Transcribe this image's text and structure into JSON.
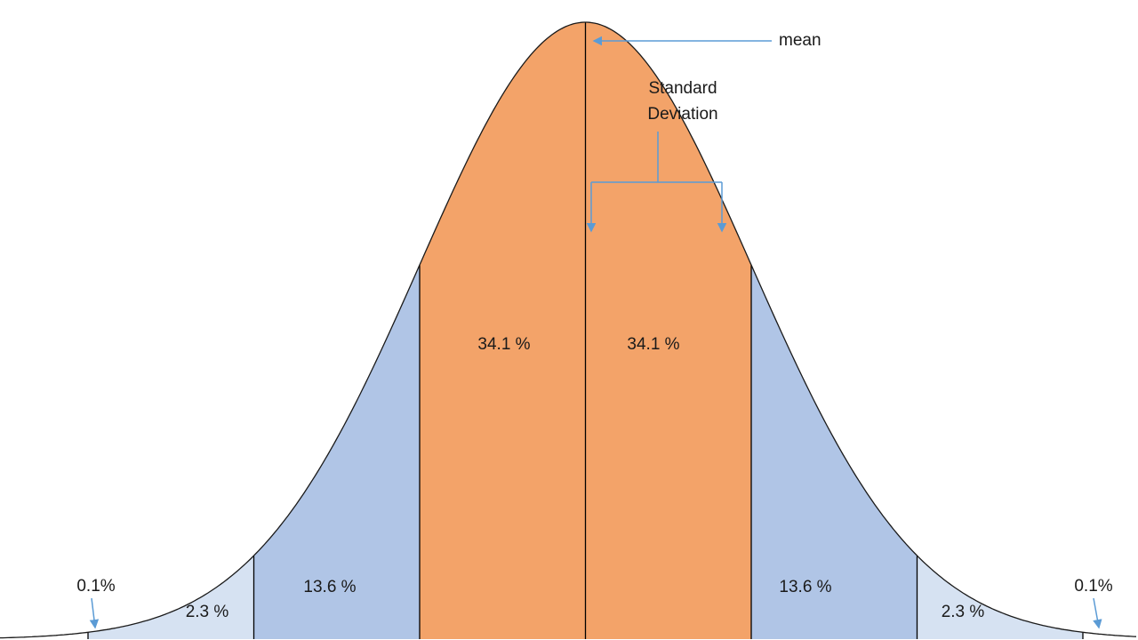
{
  "annotations": {
    "mean": "mean",
    "standard_deviation": "Standard Deviation"
  },
  "colors": {
    "annotation_blue": "#5B9BD5",
    "curve_stroke": "#1a1a1a",
    "boundary_line": "#000000",
    "region_center": "#F3A369",
    "region_1to2sd": "#B0C5E6",
    "region_2to3sd": "#D6E2F2",
    "region_tail": "#FFFFFF"
  },
  "chart_data": {
    "type": "area",
    "distribution": "normal",
    "title": "",
    "xlabel": "",
    "ylabel": "",
    "x_units": "standard deviations from mean",
    "xlim_sd": [
      -3.55,
      3.55
    ],
    "grid": false,
    "legend": false,
    "regions": [
      {
        "range_sd": [
          -3.55,
          -3
        ],
        "percent": 0.1,
        "label": "0.1%",
        "color": "#FFFFFF"
      },
      {
        "range_sd": [
          -3,
          -2
        ],
        "percent": 2.3,
        "label": "2.3 %",
        "color": "#D6E2F2"
      },
      {
        "range_sd": [
          -2,
          -1
        ],
        "percent": 13.6,
        "label": "13.6 %",
        "color": "#B0C5E6"
      },
      {
        "range_sd": [
          -1,
          0
        ],
        "percent": 34.1,
        "label": "34.1 %",
        "color": "#F3A369"
      },
      {
        "range_sd": [
          0,
          1
        ],
        "percent": 34.1,
        "label": "34.1 %",
        "color": "#F3A369"
      },
      {
        "range_sd": [
          1,
          2
        ],
        "percent": 13.6,
        "label": "13.6 %",
        "color": "#B0C5E6"
      },
      {
        "range_sd": [
          2,
          3
        ],
        "percent": 2.3,
        "label": "2.3 %",
        "color": "#D6E2F2"
      },
      {
        "range_sd": [
          3,
          3.55
        ],
        "percent": 0.1,
        "label": "0.1%",
        "color": "#FFFFFF"
      }
    ],
    "boundaries_sd": [
      -3,
      -2,
      -1,
      0,
      1,
      2,
      3
    ],
    "annotations": [
      {
        "text": "mean",
        "points_to": "mean line (0 sd)"
      },
      {
        "text": "Standard Deviation",
        "points_to": "interval from mean to +1 sd"
      }
    ]
  }
}
